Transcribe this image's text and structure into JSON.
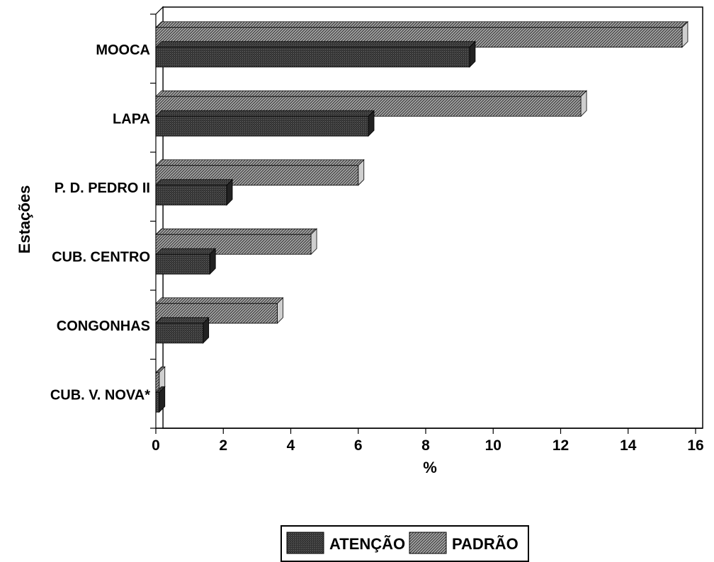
{
  "chart_data": {
    "type": "bar",
    "orientation": "horizontal",
    "categories": [
      "MOOCA",
      "LAPA",
      "P. D. PEDRO II",
      "CUB. CENTRO",
      "CONGONHAS",
      "CUB. V. NOVA*"
    ],
    "series": [
      {
        "name": "ATENÇÃO",
        "values": [
          9.3,
          6.3,
          2.1,
          1.6,
          1.4,
          0.1
        ],
        "color": "#3a3a3a",
        "pattern": "dense-dark"
      },
      {
        "name": "PADRÃO",
        "values": [
          15.6,
          12.6,
          6.0,
          4.6,
          3.6,
          0.1
        ],
        "color": "#8a8a8a",
        "pattern": "diagonal-hatch"
      }
    ],
    "xlabel": "%",
    "ylabel": "Estações",
    "xlim": [
      0,
      16
    ],
    "xticks": [
      0,
      2,
      4,
      6,
      8,
      10,
      12,
      14,
      16
    ],
    "grid": false,
    "legend_position": "bottom-center",
    "style": "3d-bars"
  }
}
